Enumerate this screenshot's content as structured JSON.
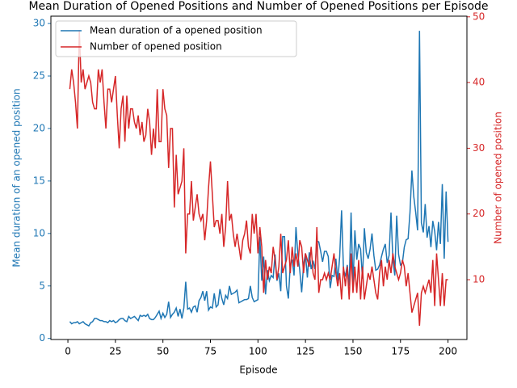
{
  "chart_data": {
    "type": "line",
    "title": "Mean Duration of Opened Positions and Number of Opened Positions per Episode",
    "xlabel": "Episode",
    "ylabel": "Mean duration of an opened position",
    "y2label": "Number of opened position",
    "legend": "upper left",
    "x": [
      1,
      2,
      3,
      4,
      5,
      6,
      7,
      8,
      9,
      10,
      11,
      12,
      13,
      14,
      15,
      16,
      17,
      18,
      19,
      20,
      21,
      22,
      23,
      24,
      25,
      26,
      27,
      28,
      29,
      30,
      31,
      32,
      33,
      34,
      35,
      36,
      37,
      38,
      39,
      40,
      41,
      42,
      43,
      44,
      45,
      46,
      47,
      48,
      49,
      50,
      51,
      52,
      53,
      54,
      55,
      56,
      57,
      58,
      59,
      60,
      61,
      62,
      63,
      64,
      65,
      66,
      67,
      68,
      69,
      70,
      71,
      72,
      73,
      74,
      75,
      76,
      77,
      78,
      79,
      80,
      81,
      82,
      83,
      84,
      85,
      86,
      87,
      88,
      89,
      90,
      91,
      92,
      93,
      94,
      95,
      96,
      97,
      98,
      99,
      100,
      101,
      102,
      103,
      104,
      105,
      106,
      107,
      108,
      109,
      110,
      111,
      112,
      113,
      114,
      115,
      116,
      117,
      118,
      119,
      120,
      121,
      122,
      123,
      124,
      125,
      126,
      127,
      128,
      129,
      130,
      131,
      132,
      133,
      134,
      135,
      136,
      137,
      138,
      139,
      140,
      141,
      142,
      143,
      144,
      145,
      146,
      147,
      148,
      149,
      150,
      151,
      152,
      153,
      154,
      155,
      156,
      157,
      158,
      159,
      160,
      161,
      162,
      163,
      164,
      165,
      166,
      167,
      168,
      169,
      170,
      171,
      172,
      173,
      174,
      175,
      176,
      177,
      178,
      179,
      180,
      181,
      182,
      183,
      184,
      185,
      186,
      187,
      188,
      189,
      190,
      191,
      192,
      193,
      194,
      195,
      196,
      197,
      198,
      199,
      200
    ],
    "xlim": [
      -8.95,
      209.95
    ],
    "xticks": [
      0,
      25,
      50,
      75,
      100,
      125,
      150,
      175,
      200
    ],
    "ylim": [
      -0.1,
      30.7
    ],
    "yticks": [
      0,
      5,
      10,
      15,
      20,
      25,
      30
    ],
    "y2lim": [
      0.9,
      50.1
    ],
    "y2ticks": [
      10,
      20,
      30,
      40,
      50
    ],
    "series": [
      {
        "name": "Mean duration of a opened position",
        "color": "#1f77b4",
        "axis": "y",
        "values": [
          1.6,
          1.4,
          1.5,
          1.5,
          1.6,
          1.4,
          1.5,
          1.6,
          1.4,
          1.3,
          1.2,
          1.5,
          1.6,
          1.9,
          1.9,
          1.8,
          1.7,
          1.7,
          1.6,
          1.6,
          1.5,
          1.7,
          1.6,
          1.7,
          1.5,
          1.6,
          1.8,
          1.9,
          1.9,
          1.7,
          1.6,
          2.1,
          1.9,
          2.0,
          2.1,
          1.9,
          1.7,
          2.2,
          2.1,
          2.2,
          2.1,
          2.3,
          1.9,
          1.8,
          1.8,
          2.0,
          2.3,
          2.6,
          1.9,
          2.4,
          2.0,
          2.3,
          3.5,
          2.0,
          2.3,
          2.5,
          2.9,
          2.1,
          2.8,
          1.9,
          2.9,
          5.4,
          2.8,
          2.9,
          2.5,
          3.0,
          3.1,
          2.5,
          3.6,
          3.9,
          4.5,
          3.6,
          4.5,
          2.7,
          3.0,
          2.9,
          4.3,
          3.0,
          3.2,
          4.7,
          3.8,
          3.2,
          4.1,
          3.8,
          5.0,
          4.2,
          4.3,
          4.4,
          4.6,
          3.4,
          3.5,
          3.6,
          3.7,
          3.7,
          3.8,
          5.0,
          3.9,
          3.5,
          3.6,
          3.7,
          9.7,
          5.5,
          7.8,
          4.2,
          6.5,
          5.5,
          6.0,
          5.8,
          8.0,
          5.5,
          6.2,
          4.5,
          9.7,
          9.7,
          5.0,
          3.8,
          7.0,
          7.5,
          6.0,
          10.6,
          8.0,
          6.5,
          4.4,
          7.0,
          8.1,
          5.8,
          8.2,
          6.6,
          7.4,
          6.6,
          9.3,
          9.2,
          8.3,
          7.3,
          8.3,
          8.3,
          7.8,
          4.8,
          6.0,
          5.9,
          7.6,
          5.5,
          7.8,
          12.2,
          6.6,
          5.9,
          7.0,
          5.0,
          12.0,
          5.0,
          10.3,
          7.5,
          9.0,
          8.5,
          5.7,
          10.5,
          8.2,
          7.6,
          8.5,
          10.0,
          7.9,
          6.5,
          6.6,
          7.0,
          7.8,
          8.5,
          9.0,
          7.2,
          7.9,
          12.0,
          7.5,
          6.0,
          11.7,
          8.0,
          7.0,
          7.2,
          8.7,
          9.4,
          9.5,
          12.0,
          16.0,
          13.5,
          12.0,
          10.3,
          29.3,
          11.0,
          10.1,
          12.8,
          9.6,
          10.7,
          8.7,
          11.2,
          10.2,
          8.4,
          11.1,
          9.0,
          14.7,
          7.6,
          14.0,
          9.2
        ]
      },
      {
        "name": "Number of opened position",
        "color": "#d62728",
        "axis": "y2",
        "values": [
          39,
          42,
          40,
          37,
          33,
          48,
          40,
          42,
          39,
          40,
          41,
          40,
          37,
          36,
          36,
          42,
          40,
          42,
          37,
          33,
          39,
          39,
          37,
          39,
          41,
          35,
          30,
          36,
          38,
          31,
          38,
          33,
          36,
          36,
          34,
          33,
          35,
          32,
          34,
          31,
          32,
          36,
          34,
          29,
          33,
          30,
          39,
          31,
          31,
          39,
          36,
          35,
          27,
          33,
          33,
          21,
          29,
          23,
          24,
          25,
          30,
          14,
          20,
          20,
          25,
          19,
          21,
          23,
          20,
          19,
          20,
          16,
          19,
          24,
          28,
          23,
          18,
          19,
          19,
          17,
          20,
          15,
          18,
          25,
          19,
          20,
          17,
          15,
          17,
          15,
          13,
          16,
          17,
          19,
          15,
          14,
          20,
          17,
          20,
          14,
          18,
          15,
          8,
          13,
          10,
          12,
          11,
          15,
          13,
          10,
          12,
          17,
          11,
          12,
          13,
          16,
          11,
          15,
          12,
          14,
          12,
          16,
          15,
          11,
          14,
          13,
          12,
          15,
          11,
          10,
          18,
          8,
          10,
          10,
          11,
          10,
          11,
          10,
          12,
          14,
          11,
          9,
          11,
          7,
          12,
          9,
          12,
          7,
          14,
          8,
          12,
          8,
          13,
          7,
          12,
          7,
          9,
          11,
          10,
          12,
          10,
          8,
          7,
          11,
          13,
          9,
          12,
          10,
          13,
          11,
          14,
          12,
          11,
          10,
          11,
          13,
          12,
          9,
          11,
          8,
          5,
          6,
          7,
          8,
          3,
          8,
          9,
          8,
          9,
          10,
          8,
          13,
          6,
          14,
          10,
          6,
          11,
          6,
          10,
          10
        ]
      }
    ]
  }
}
